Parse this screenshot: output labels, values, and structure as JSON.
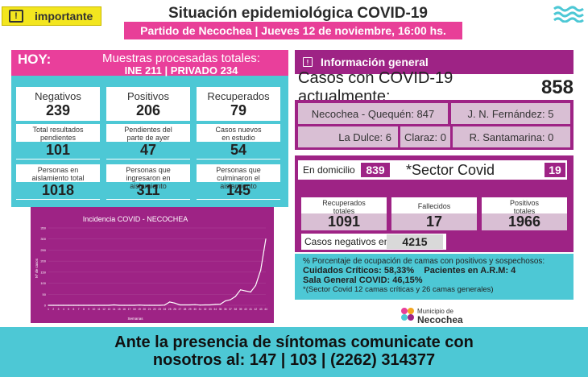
{
  "header": {
    "badge": "importante",
    "title": "Situación epidemiológica COVID-19",
    "subtitle": "Partido de Necochea | Jueves 12 de noviembre, 16:00 hs."
  },
  "left": {
    "hoy": "HOY:",
    "muestras_line1": "Muestras procesadas totales:",
    "muestras_line2": "INE 211 | PRIVADO 234",
    "stats": [
      {
        "label": "Negativos",
        "value": "239"
      },
      {
        "label": "Positivos",
        "value": "206"
      },
      {
        "label": "Recuperados",
        "value": "79"
      },
      {
        "label": "Total resultados pendientes",
        "value": "101"
      },
      {
        "label": "Pendientes del parte de ayer",
        "value": "47"
      },
      {
        "label": "Casos nuevos en estudio",
        "value": "54"
      },
      {
        "label": "Personas en aislamiento total",
        "value": "1018"
      },
      {
        "label": "Personas que ingresaron en aislamiento",
        "value": "311"
      },
      {
        "label": "Personas que culminaron el aislamiento",
        "value": "145"
      }
    ]
  },
  "chart_data": {
    "type": "line",
    "title": "Incidencia COVID - NECOCHEA",
    "xlabel": "Semanas",
    "ylabel": "Nº de casos",
    "ylim": [
      0,
      350
    ],
    "yticks": [
      0,
      50,
      100,
      150,
      200,
      250,
      300,
      350
    ],
    "x": [
      1,
      2,
      3,
      4,
      5,
      6,
      7,
      8,
      9,
      10,
      11,
      12,
      13,
      14,
      15,
      16,
      17,
      18,
      19,
      20,
      21,
      22,
      23,
      24,
      25,
      26,
      27,
      28,
      29,
      30,
      31,
      32,
      33,
      34,
      35,
      36,
      37,
      38,
      39,
      40,
      41,
      42,
      43,
      44
    ],
    "values": [
      0,
      0,
      0,
      0,
      0,
      0,
      0,
      0,
      0,
      0,
      0,
      0,
      0,
      2,
      0,
      0,
      0,
      0,
      1,
      0,
      0,
      0,
      0,
      1,
      15,
      10,
      2,
      2,
      2,
      3,
      1,
      2,
      2,
      4,
      5,
      20,
      25,
      40,
      70,
      65,
      60,
      90,
      160,
      300
    ],
    "line_color": "#ffffff"
  },
  "right": {
    "info_title": "Información general",
    "casos_label": "Casos con COVID-19 actualmente:",
    "casos_value": "858",
    "localidades": [
      {
        "label": "Necochea - Quequén: 847"
      },
      {
        "label": "J. N. Fernández: 5"
      },
      {
        "label": "La Dulce: 6"
      },
      {
        "label": "Claraz: 0"
      },
      {
        "label": "R. Santamarina: 0"
      }
    ],
    "domicilio_label": "En domicilio",
    "domicilio_value": "839",
    "sector_label": "*Sector Covid",
    "sector_value": "19",
    "totals": [
      {
        "label": "Recuperados totales",
        "value": "1091"
      },
      {
        "label": "Fallecidos",
        "value": "17"
      },
      {
        "label": "Positivos totales",
        "value": "1966"
      }
    ],
    "negativos_label": "Casos negativos en total",
    "negativos_value": "4215",
    "beds_line1": "% Porcentaje de ocupación de camas con positivos y sospechosos:",
    "beds_line2": "Cuidados Críticos: 58,33%    Pacientes en A.R.M: 4",
    "beds_line3": "Sala General COVID: 46,15%",
    "beds_line4": "*(Sector Covid 12 camas críticas y 26 camas generales)",
    "logo_line1": "Municipio de",
    "logo_line2": "Necochea"
  },
  "footer": {
    "line1": "Ante la presencia de síntomas comunicate con",
    "line2": "nosotros al: 147 | 103 | (2262) 314377"
  }
}
